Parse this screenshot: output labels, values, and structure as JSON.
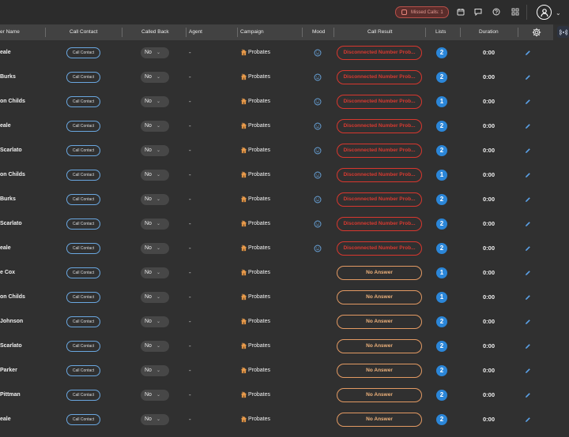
{
  "topbar": {
    "missed_calls_label": "Missed Calls: 1",
    "icons": [
      "calendar-icon",
      "chat-icon",
      "help-icon",
      "apps-grid-icon"
    ],
    "avatar_icon": "user-avatar-icon"
  },
  "table": {
    "headers": [
      "er Name",
      "Call Contact",
      "Called Back",
      "Agent",
      "Campaign",
      "Mood",
      "Call Result",
      "Lists",
      "Duration"
    ],
    "rows": [
      {
        "name": "eale",
        "call_contact": "Call Contact",
        "called_back": "No",
        "agent": "-",
        "campaign": "Probates",
        "mood": true,
        "result": "Disconnected Number Prob...",
        "result_type": "disconnected",
        "lists": "2",
        "duration": "0:00"
      },
      {
        "name": "Burks",
        "call_contact": "Call Contact",
        "called_back": "No",
        "agent": "-",
        "campaign": "Probates",
        "mood": true,
        "result": "Disconnected Number Prob...",
        "result_type": "disconnected",
        "lists": "2",
        "duration": "0:00"
      },
      {
        "name": "on Childs",
        "call_contact": "Call Contact",
        "called_back": "No",
        "agent": "-",
        "campaign": "Probates",
        "mood": true,
        "result": "Disconnected Number Prob...",
        "result_type": "disconnected",
        "lists": "1",
        "duration": "0:00"
      },
      {
        "name": "eale",
        "call_contact": "Call Contact",
        "called_back": "No",
        "agent": "-",
        "campaign": "Probates",
        "mood": true,
        "result": "Disconnected Number Prob...",
        "result_type": "disconnected",
        "lists": "2",
        "duration": "0:00"
      },
      {
        "name": "Scarlato",
        "call_contact": "Call Contact",
        "called_back": "No",
        "agent": "-",
        "campaign": "Probates",
        "mood": true,
        "result": "Disconnected Number Prob...",
        "result_type": "disconnected",
        "lists": "2",
        "duration": "0:00"
      },
      {
        "name": "on Childs",
        "call_contact": "Call Contact",
        "called_back": "No",
        "agent": "-",
        "campaign": "Probates",
        "mood": true,
        "result": "Disconnected Number Prob...",
        "result_type": "disconnected",
        "lists": "1",
        "duration": "0:00"
      },
      {
        "name": "Burks",
        "call_contact": "Call Contact",
        "called_back": "No",
        "agent": "-",
        "campaign": "Probates",
        "mood": true,
        "result": "Disconnected Number Prob...",
        "result_type": "disconnected",
        "lists": "2",
        "duration": "0:00"
      },
      {
        "name": "Scarlato",
        "call_contact": "Call Contact",
        "called_back": "No",
        "agent": "-",
        "campaign": "Probates",
        "mood": true,
        "result": "Disconnected Number Prob...",
        "result_type": "disconnected",
        "lists": "2",
        "duration": "0:00"
      },
      {
        "name": "eale",
        "call_contact": "Call Contact",
        "called_back": "No",
        "agent": "-",
        "campaign": "Probates",
        "mood": true,
        "result": "Disconnected Number Prob...",
        "result_type": "disconnected",
        "lists": "2",
        "duration": "0:00"
      },
      {
        "name": "e Cox",
        "call_contact": "Call Contact",
        "called_back": "No",
        "agent": "-",
        "campaign": "Probates",
        "mood": false,
        "result": "No Answer",
        "result_type": "no-answer",
        "lists": "1",
        "duration": "0:00"
      },
      {
        "name": "on Childs",
        "call_contact": "Call Contact",
        "called_back": "No",
        "agent": "-",
        "campaign": "Probates",
        "mood": false,
        "result": "No Answer",
        "result_type": "no-answer",
        "lists": "1",
        "duration": "0:00"
      },
      {
        "name": "Johnson",
        "call_contact": "Call Contact",
        "called_back": "No",
        "agent": "-",
        "campaign": "Probates",
        "mood": false,
        "result": "No Answer",
        "result_type": "no-answer",
        "lists": "2",
        "duration": "0:00"
      },
      {
        "name": "Scarlato",
        "call_contact": "Call Contact",
        "called_back": "No",
        "agent": "-",
        "campaign": "Probates",
        "mood": false,
        "result": "No Answer",
        "result_type": "no-answer",
        "lists": "2",
        "duration": "0:00"
      },
      {
        "name": "Parker",
        "call_contact": "Call Contact",
        "called_back": "No",
        "agent": "-",
        "campaign": "Probates",
        "mood": false,
        "result": "No Answer",
        "result_type": "no-answer",
        "lists": "2",
        "duration": "0:00"
      },
      {
        "name": "Pittman",
        "call_contact": "Call Contact",
        "called_back": "No",
        "agent": "-",
        "campaign": "Probates",
        "mood": false,
        "result": "No Answer",
        "result_type": "no-answer",
        "lists": "2",
        "duration": "0:00"
      },
      {
        "name": "eale",
        "call_contact": "Call Contact",
        "called_back": "No",
        "agent": "-",
        "campaign": "Probates",
        "mood": false,
        "result": "No Answer",
        "result_type": "no-answer",
        "lists": "2",
        "duration": "0:00"
      }
    ]
  },
  "colors": {
    "background": "#303030",
    "header": "#424242",
    "disconnected": "#d9372e",
    "no_answer": "#e39a63",
    "lists_badge": "#2b86d8",
    "link_blue": "#6aa7e0"
  }
}
